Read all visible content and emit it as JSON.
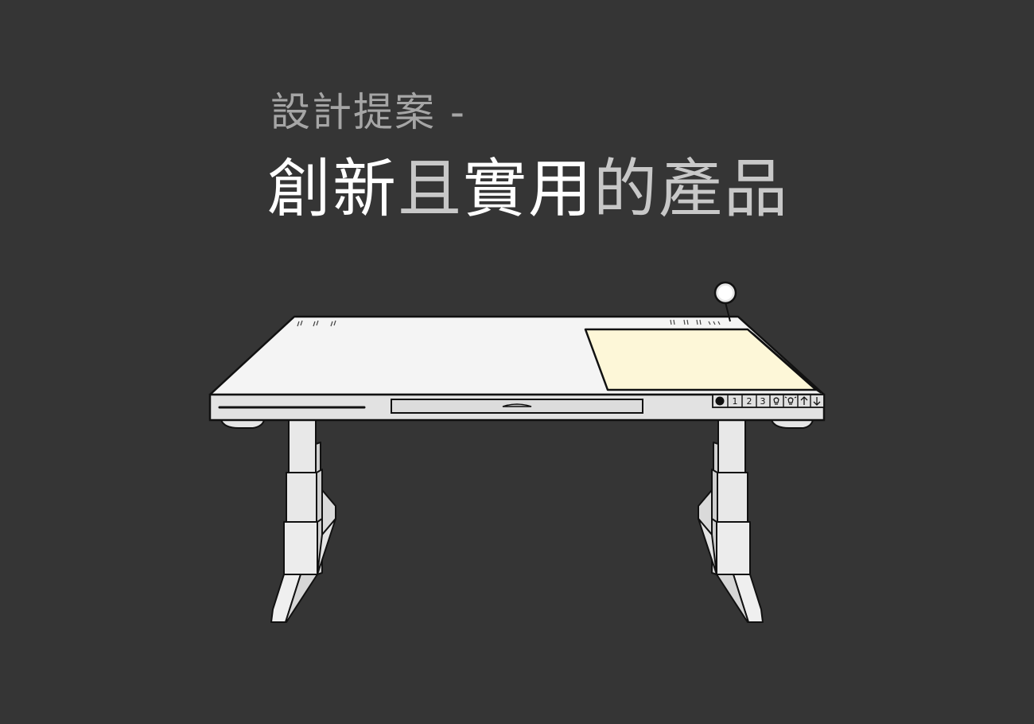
{
  "heading": {
    "subtitle": "設計提案 -",
    "segments": [
      {
        "text": "創新",
        "tone": "white"
      },
      {
        "text": "且",
        "tone": "grey"
      },
      {
        "text": "實用",
        "tone": "white"
      },
      {
        "text": "的產品",
        "tone": "grey"
      }
    ]
  },
  "desk": {
    "control_panel": {
      "buttons": [
        "1",
        "2",
        "3"
      ],
      "icons": [
        "power-icon",
        "memory-1",
        "memory-2",
        "memory-3",
        "lamp-off-icon",
        "lamp-on-icon",
        "arrow-up-icon",
        "arrow-down-icon"
      ]
    },
    "colors": {
      "background": "#353535",
      "desk_surface": "#f4f4f4",
      "writing_pad": "#fdf7d8",
      "outline": "#111111"
    }
  }
}
